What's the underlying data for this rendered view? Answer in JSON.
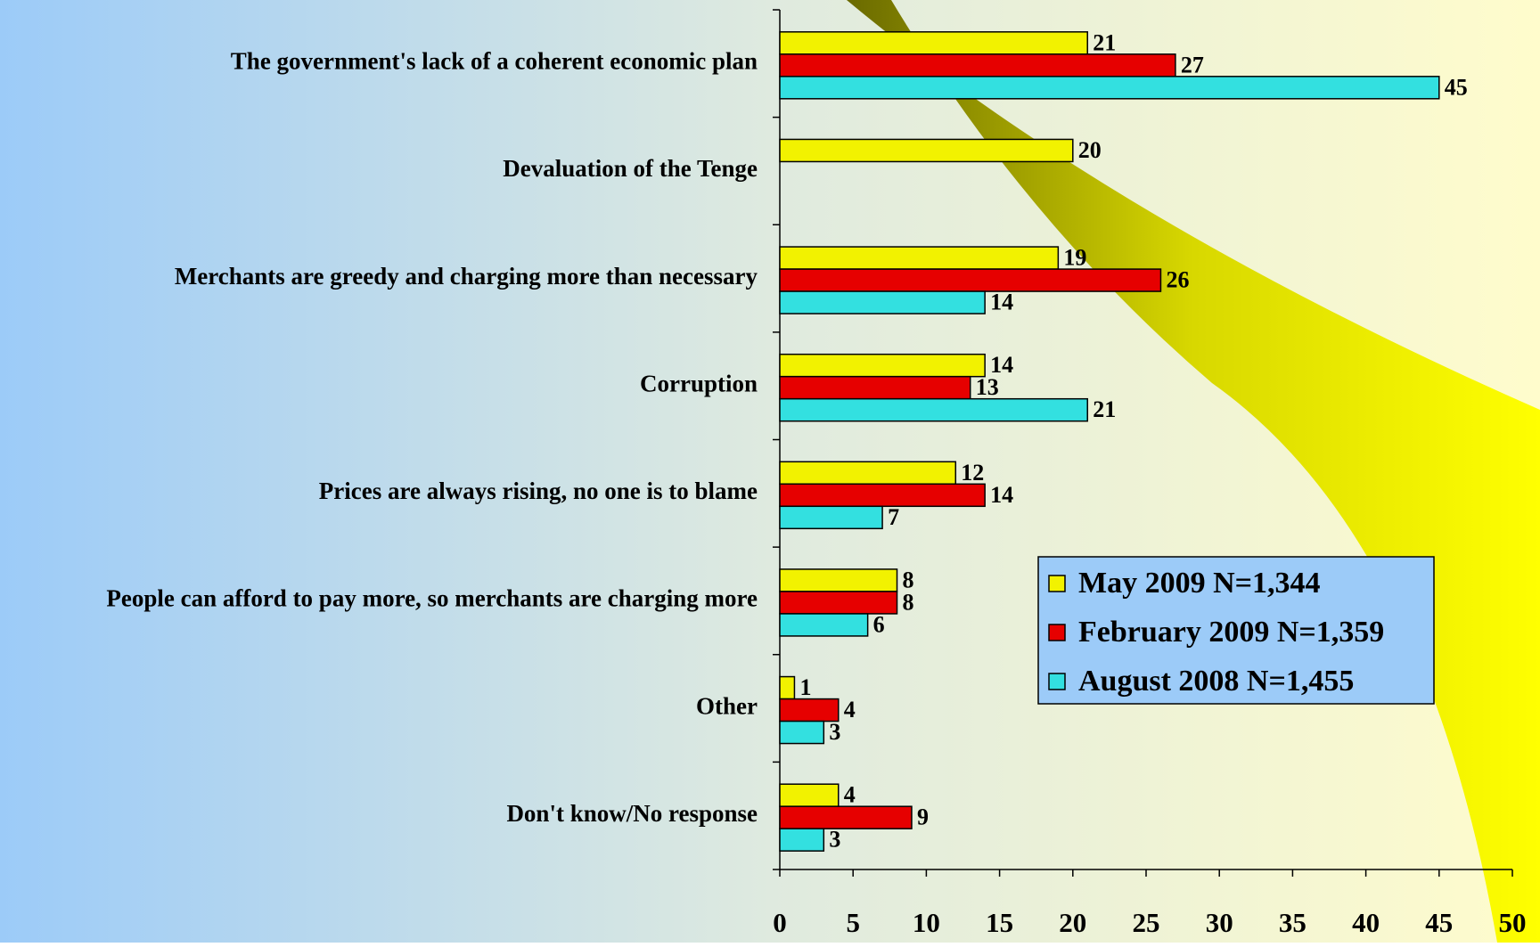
{
  "chart_data": {
    "type": "bar",
    "orientation": "horizontal",
    "categories": [
      "The government's lack of a coherent economic plan",
      "Devaluation of the Tenge",
      "Merchants are greedy and charging more than necessary",
      "Corruption",
      "Prices are always rising, no one is to blame",
      "People can afford to pay more, so merchants are charging more",
      "Other",
      "Don't know/No response"
    ],
    "series": [
      {
        "name": "May 2009 N=1,344",
        "color": "#f2f200",
        "values": [
          21,
          20,
          19,
          14,
          12,
          8,
          1,
          4
        ]
      },
      {
        "name": "February 2009 N=1,359",
        "color": "#e60000",
        "values": [
          27,
          null,
          26,
          13,
          14,
          8,
          4,
          9
        ]
      },
      {
        "name": "August 2008 N=1,455",
        "color": "#33e0e0",
        "values": [
          45,
          null,
          14,
          21,
          7,
          6,
          3,
          3
        ]
      }
    ],
    "xlim": [
      0,
      50
    ],
    "xticks": [
      0,
      5,
      10,
      15,
      20,
      25,
      30,
      35,
      40,
      45,
      50
    ],
    "legend": "lower right"
  }
}
